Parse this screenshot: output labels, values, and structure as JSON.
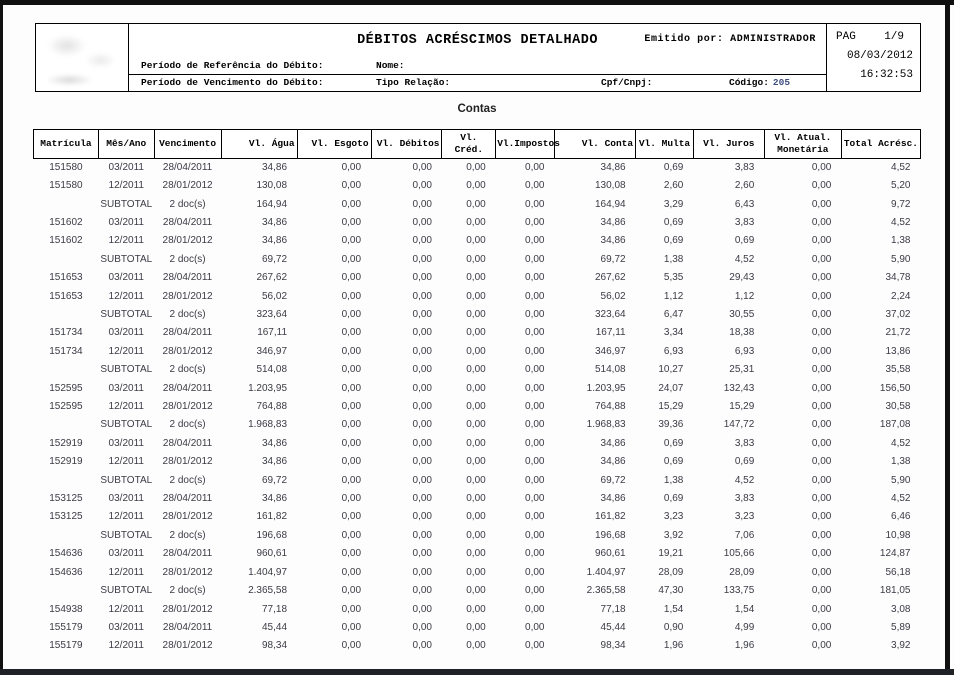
{
  "colors": {
    "frame": "#101010",
    "bottom_bar": "#1e2125",
    "table_border": "#000000",
    "data_text": "#3b3b46",
    "code_value": "#3f4f82"
  },
  "header": {
    "title": "DÉBITOS ACRÉSCIMOS DETALHADO",
    "emitted_by_label": "Emitido por:",
    "emitted_by_value": "ADMINISTRADOR",
    "emitted_by": "Emitido por: ADMINISTRADOR",
    "page_label": "PAG",
    "page_value": "1/9",
    "date": "08/03/2012",
    "time": "16:32:53",
    "fields": {
      "ref_label": "Período de Referência do Débito:",
      "venc_label": "Período de Vencimento do Débito:",
      "nome_label": "Nome:",
      "tipo_label": "Tipo Relação:",
      "cpf_label": "Cpf/Cnpj:",
      "codigo_label": "Código:",
      "codigo_value": "205"
    }
  },
  "section_title": "Contas",
  "table": {
    "columns": [
      "Matrícula",
      "Mês/Ano",
      "Vencimento",
      "Vl. Água",
      "Vl. Esgoto",
      "Vl. Débitos",
      "Vl. Créd.",
      "Vl.Impostos",
      "Vl. Conta",
      "Vl. Multa",
      "Vl. Juros",
      "Vl. Atual. Monetária",
      "Total Acrésc."
    ],
    "rows": [
      [
        "151580",
        "03/2011",
        "28/04/2011",
        "34,86",
        "0,00",
        "0,00",
        "0,00",
        "0,00",
        "34,86",
        "0,69",
        "3,83",
        "0,00",
        "4,52"
      ],
      [
        "151580",
        "12/2011",
        "28/01/2012",
        "130,08",
        "0,00",
        "0,00",
        "0,00",
        "0,00",
        "130,08",
        "2,60",
        "2,60",
        "0,00",
        "5,20"
      ],
      [
        "",
        "SUBTOTAL",
        "2 doc(s)",
        "164,94",
        "0,00",
        "0,00",
        "0,00",
        "0,00",
        "164,94",
        "3,29",
        "6,43",
        "0,00",
        "9,72"
      ],
      [
        "151602",
        "03/2011",
        "28/04/2011",
        "34,86",
        "0,00",
        "0,00",
        "0,00",
        "0,00",
        "34,86",
        "0,69",
        "3,83",
        "0,00",
        "4,52"
      ],
      [
        "151602",
        "12/2011",
        "28/01/2012",
        "34,86",
        "0,00",
        "0,00",
        "0,00",
        "0,00",
        "34,86",
        "0,69",
        "0,69",
        "0,00",
        "1,38"
      ],
      [
        "",
        "SUBTOTAL",
        "2 doc(s)",
        "69,72",
        "0,00",
        "0,00",
        "0,00",
        "0,00",
        "69,72",
        "1,38",
        "4,52",
        "0,00",
        "5,90"
      ],
      [
        "151653",
        "03/2011",
        "28/04/2011",
        "267,62",
        "0,00",
        "0,00",
        "0,00",
        "0,00",
        "267,62",
        "5,35",
        "29,43",
        "0,00",
        "34,78"
      ],
      [
        "151653",
        "12/2011",
        "28/01/2012",
        "56,02",
        "0,00",
        "0,00",
        "0,00",
        "0,00",
        "56,02",
        "1,12",
        "1,12",
        "0,00",
        "2,24"
      ],
      [
        "",
        "SUBTOTAL",
        "2 doc(s)",
        "323,64",
        "0,00",
        "0,00",
        "0,00",
        "0,00",
        "323,64",
        "6,47",
        "30,55",
        "0,00",
        "37,02"
      ],
      [
        "151734",
        "03/2011",
        "28/04/2011",
        "167,11",
        "0,00",
        "0,00",
        "0,00",
        "0,00",
        "167,11",
        "3,34",
        "18,38",
        "0,00",
        "21,72"
      ],
      [
        "151734",
        "12/2011",
        "28/01/2012",
        "346,97",
        "0,00",
        "0,00",
        "0,00",
        "0,00",
        "346,97",
        "6,93",
        "6,93",
        "0,00",
        "13,86"
      ],
      [
        "",
        "SUBTOTAL",
        "2 doc(s)",
        "514,08",
        "0,00",
        "0,00",
        "0,00",
        "0,00",
        "514,08",
        "10,27",
        "25,31",
        "0,00",
        "35,58"
      ],
      [
        "152595",
        "03/2011",
        "28/04/2011",
        "1.203,95",
        "0,00",
        "0,00",
        "0,00",
        "0,00",
        "1.203,95",
        "24,07",
        "132,43",
        "0,00",
        "156,50"
      ],
      [
        "152595",
        "12/2011",
        "28/01/2012",
        "764,88",
        "0,00",
        "0,00",
        "0,00",
        "0,00",
        "764,88",
        "15,29",
        "15,29",
        "0,00",
        "30,58"
      ],
      [
        "",
        "SUBTOTAL",
        "2 doc(s)",
        "1.968,83",
        "0,00",
        "0,00",
        "0,00",
        "0,00",
        "1.968,83",
        "39,36",
        "147,72",
        "0,00",
        "187,08"
      ],
      [
        "152919",
        "03/2011",
        "28/04/2011",
        "34,86",
        "0,00",
        "0,00",
        "0,00",
        "0,00",
        "34,86",
        "0,69",
        "3,83",
        "0,00",
        "4,52"
      ],
      [
        "152919",
        "12/2011",
        "28/01/2012",
        "34,86",
        "0,00",
        "0,00",
        "0,00",
        "0,00",
        "34,86",
        "0,69",
        "0,69",
        "0,00",
        "1,38"
      ],
      [
        "",
        "SUBTOTAL",
        "2 doc(s)",
        "69,72",
        "0,00",
        "0,00",
        "0,00",
        "0,00",
        "69,72",
        "1,38",
        "4,52",
        "0,00",
        "5,90"
      ],
      [
        "153125",
        "03/2011",
        "28/04/2011",
        "34,86",
        "0,00",
        "0,00",
        "0,00",
        "0,00",
        "34,86",
        "0,69",
        "3,83",
        "0,00",
        "4,52"
      ],
      [
        "153125",
        "12/2011",
        "28/01/2012",
        "161,82",
        "0,00",
        "0,00",
        "0,00",
        "0,00",
        "161,82",
        "3,23",
        "3,23",
        "0,00",
        "6,46"
      ],
      [
        "",
        "SUBTOTAL",
        "2 doc(s)",
        "196,68",
        "0,00",
        "0,00",
        "0,00",
        "0,00",
        "196,68",
        "3,92",
        "7,06",
        "0,00",
        "10,98"
      ],
      [
        "154636",
        "03/2011",
        "28/04/2011",
        "960,61",
        "0,00",
        "0,00",
        "0,00",
        "0,00",
        "960,61",
        "19,21",
        "105,66",
        "0,00",
        "124,87"
      ],
      [
        "154636",
        "12/2011",
        "28/01/2012",
        "1.404,97",
        "0,00",
        "0,00",
        "0,00",
        "0,00",
        "1.404,97",
        "28,09",
        "28,09",
        "0,00",
        "56,18"
      ],
      [
        "",
        "SUBTOTAL",
        "2 doc(s)",
        "2.365,58",
        "0,00",
        "0,00",
        "0,00",
        "0,00",
        "2.365,58",
        "47,30",
        "133,75",
        "0,00",
        "181,05"
      ],
      [
        "154938",
        "12/2011",
        "28/01/2012",
        "77,18",
        "0,00",
        "0,00",
        "0,00",
        "0,00",
        "77,18",
        "1,54",
        "1,54",
        "0,00",
        "3,08"
      ],
      [
        "155179",
        "03/2011",
        "28/04/2011",
        "45,44",
        "0,00",
        "0,00",
        "0,00",
        "0,00",
        "45,44",
        "0,90",
        "4,99",
        "0,00",
        "5,89"
      ],
      [
        "155179",
        "12/2011",
        "28/01/2012",
        "98,34",
        "0,00",
        "0,00",
        "0,00",
        "0,00",
        "98,34",
        "1,96",
        "1,96",
        "0,00",
        "3,92"
      ]
    ]
  }
}
